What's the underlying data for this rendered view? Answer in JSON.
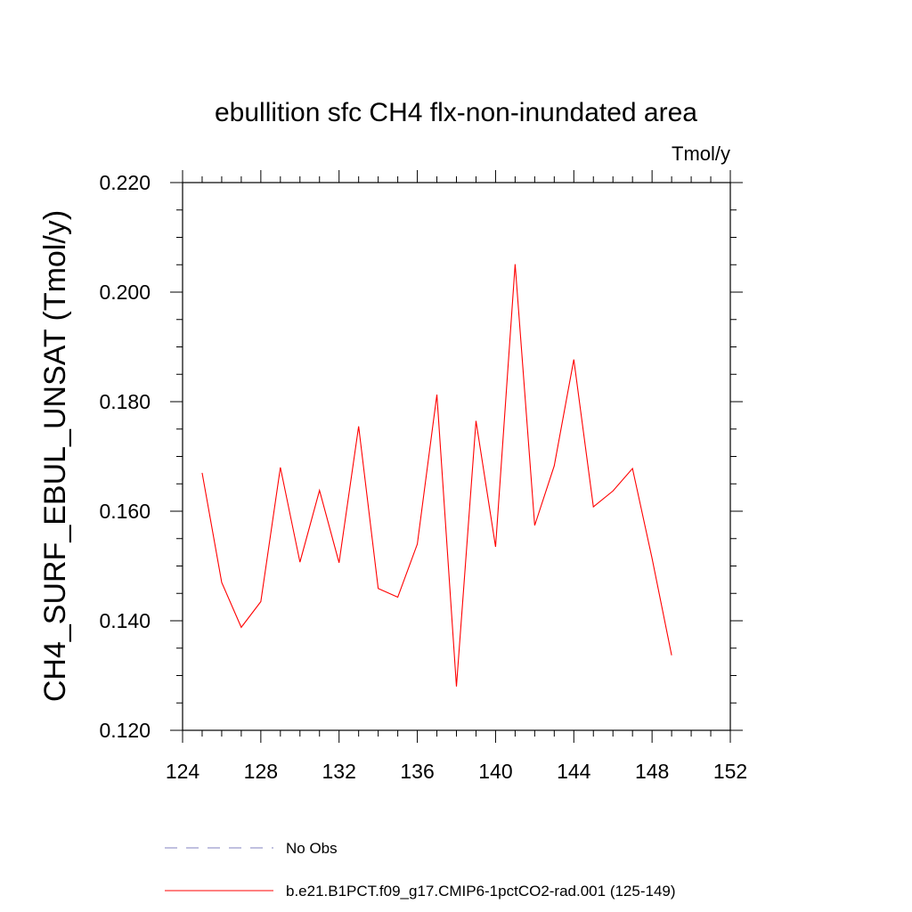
{
  "chart_data": {
    "type": "line",
    "title": "ebullition sfc CH4 flx-non-inundated area",
    "units_label": "Tmol/y",
    "xlabel": "",
    "ylabel": "CH4_SURF_EBUL_UNSAT  (Tmol/y)",
    "xlim": [
      124,
      152
    ],
    "ylim": [
      0.12,
      0.22
    ],
    "xticks": [
      124,
      128,
      132,
      136,
      140,
      144,
      148,
      152
    ],
    "xtick_labels": [
      "124",
      "128",
      "132",
      "136",
      "140",
      "144",
      "148",
      "152"
    ],
    "yticks": [
      0.12,
      0.14,
      0.16,
      0.18,
      0.2,
      0.22
    ],
    "ytick_labels": [
      "0.120",
      "0.140",
      "0.160",
      "0.180",
      "0.200",
      "0.220"
    ],
    "grid": false,
    "legend_position": "bottom",
    "series": [
      {
        "name": "No Obs",
        "color": "#8080c0",
        "dash": "dashed",
        "x": [],
        "values": []
      },
      {
        "name": "b.e21.B1PCT.f09_g17.CMIP6-1pctCO2-rad.001 (125-149)",
        "color": "#ff0000",
        "dash": "solid",
        "x": [
          125,
          126,
          127,
          128,
          129,
          130,
          131,
          132,
          133,
          134,
          135,
          136,
          137,
          138,
          139,
          140,
          141,
          142,
          143,
          144,
          145,
          146,
          147,
          148,
          149
        ],
        "values": [
          0.167,
          0.147,
          0.1388,
          0.1435,
          0.168,
          0.1507,
          0.1638,
          0.1506,
          0.1755,
          0.1459,
          0.1443,
          0.154,
          0.1813,
          0.128,
          0.1765,
          0.1535,
          0.2051,
          0.1574,
          0.1683,
          0.1877,
          0.1608,
          0.1637,
          0.1678,
          0.1514,
          0.1337
        ]
      }
    ]
  }
}
